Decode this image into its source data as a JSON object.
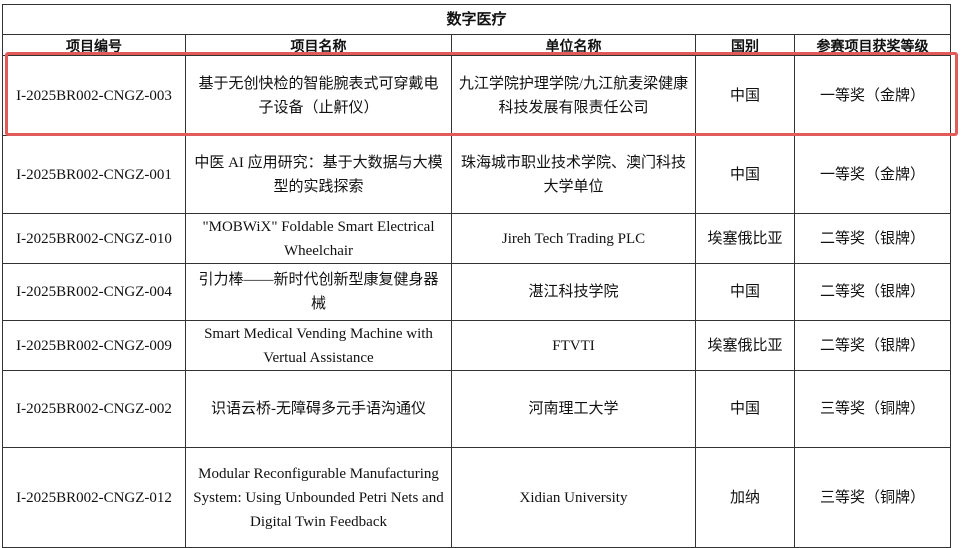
{
  "table": {
    "title": "数字医疗",
    "headers": [
      "项目编号",
      "项目名称",
      "单位名称",
      "国别",
      "参赛项目获奖等级"
    ],
    "rows": [
      [
        "I-2025BR002-CNGZ-003",
        "基于无创快检的智能腕表式可穿戴电子设备（止鼾仪）",
        "九江学院护理学院/九江航麦梁健康科技发展有限责任公司",
        "中国",
        "一等奖（金牌）"
      ],
      [
        "I-2025BR002-CNGZ-001",
        "中医 AI 应用研究：基于大数据与大模型的实践探索",
        "珠海城市职业技术学院、澳门科技大学单位",
        "中国",
        "一等奖（金牌）"
      ],
      [
        "I-2025BR002-CNGZ-010",
        "\"MOBWiX\" Foldable Smart Electrical Wheelchair",
        "Jireh Tech Trading PLC",
        "埃塞俄比亚",
        "二等奖（银牌）"
      ],
      [
        "I-2025BR002-CNGZ-004",
        "引力棒——新时代创新型康复健身器械",
        "湛江科技学院",
        "中国",
        "二等奖（银牌）"
      ],
      [
        "I-2025BR002-CNGZ-009",
        "Smart Medical Vending Machine with Vertual Assistance",
        "FTVTI",
        "埃塞俄比亚",
        "二等奖（银牌）"
      ],
      [
        "I-2025BR002-CNGZ-002",
        "识语云桥-无障碍多元手语沟通仪",
        "河南理工大学",
        "中国",
        "三等奖（铜牌）"
      ],
      [
        "I-2025BR002-CNGZ-012",
        "Modular Reconfigurable Manufacturing System: Using Unbounded Petri Nets and Digital Twin Feedback",
        "Xidian University",
        "加纳",
        "三等奖（铜牌）"
      ]
    ]
  }
}
